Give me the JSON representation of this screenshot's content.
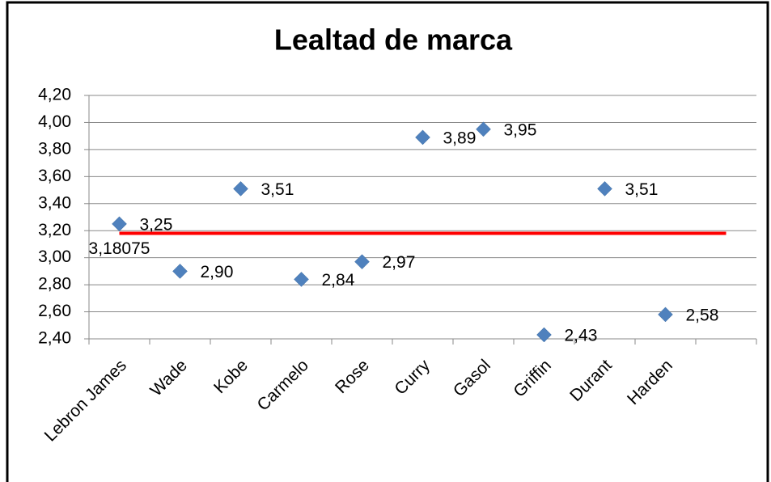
{
  "chart_data": {
    "type": "scatter",
    "title": "Lealtad de marca",
    "categories": [
      "Lebron James",
      "Wade",
      "Kobe",
      "Carmelo",
      "Rose",
      "Curry",
      "Gasol",
      "Griffin",
      "Durant",
      "Harden",
      null
    ],
    "values": [
      3.25,
      2.9,
      3.51,
      2.84,
      2.97,
      3.89,
      3.95,
      2.43,
      3.51,
      2.58,
      null
    ],
    "value_labels": [
      "3,25",
      "2,90",
      "3,51",
      "2,84",
      "2,97",
      "3,89",
      "3,95",
      "2,43",
      "3,51",
      "2,58",
      null
    ],
    "color": "#4f81bd",
    "reference_line": {
      "value": 3.18075,
      "label": "3,18075",
      "color": "#ff0000"
    },
    "ylim": [
      2.4,
      4.2
    ],
    "yticks": [
      {
        "value": 2.4,
        "label": "2,40"
      },
      {
        "value": 2.6,
        "label": "2,60"
      },
      {
        "value": 2.8,
        "label": "2,80"
      },
      {
        "value": 3.0,
        "label": "3,00"
      },
      {
        "value": 3.2,
        "label": "3,20"
      },
      {
        "value": 3.4,
        "label": "3,40"
      },
      {
        "value": 3.6,
        "label": "3,60"
      },
      {
        "value": 3.8,
        "label": "3,80"
      },
      {
        "value": 4.0,
        "label": "4,00"
      },
      {
        "value": 4.2,
        "label": "4,20"
      }
    ],
    "grid": true
  }
}
